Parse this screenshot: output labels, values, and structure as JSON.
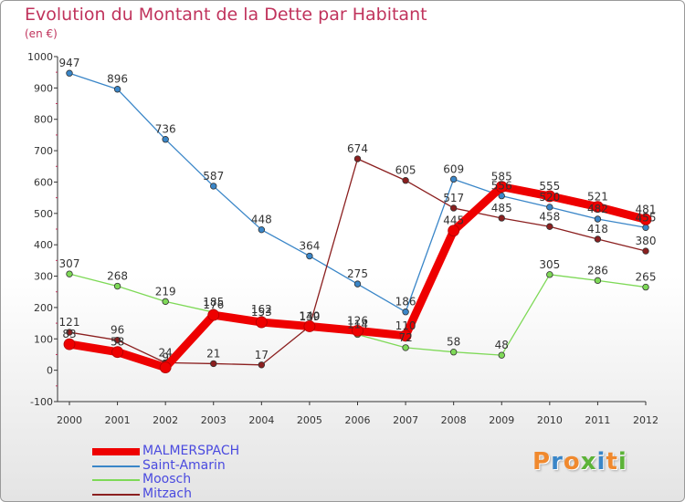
{
  "title": "Evolution du Montant de la Dette par Habitant",
  "subtitle": "(en €)",
  "logo": {
    "text": "Proxiti",
    "letter_colors": [
      "#f0892e",
      "#3a86c8",
      "#f0892e",
      "#5cb338",
      "#3a86c8",
      "#f0892e",
      "#5cb338"
    ]
  },
  "chart_data": {
    "type": "line",
    "x": [
      "2000",
      "2001",
      "2002",
      "2003",
      "2004",
      "2005",
      "2006",
      "2007",
      "2008",
      "2009",
      "2010",
      "2011",
      "2012"
    ],
    "ylim": [
      -100,
      1000
    ],
    "yticks": [
      "-100",
      "0",
      "100",
      "200",
      "300",
      "400",
      "500",
      "600",
      "700",
      "800",
      "900",
      "1000"
    ],
    "grid": false,
    "legend_position": "bottom-left",
    "series": [
      {
        "name": "MALMERSPACH",
        "color": "#ee0000",
        "emphasis": true,
        "values": [
          83,
          58,
          9,
          176,
          153,
          140,
          126,
          110,
          445,
          585,
          555,
          521,
          481
        ],
        "labels": [
          "83",
          "58",
          "9",
          "176",
          "153",
          "140",
          "126",
          "110",
          "445",
          "585",
          "555",
          "521",
          "481"
        ]
      },
      {
        "name": "Saint-Amarin",
        "color": "#3a86c8",
        "values": [
          947,
          896,
          736,
          587,
          448,
          364,
          275,
          186,
          609,
          556,
          520,
          482,
          455
        ],
        "labels": [
          "947",
          "896",
          "736",
          "587",
          "448",
          "364",
          "275",
          "186",
          "609",
          "556",
          "520",
          "482",
          "455"
        ]
      },
      {
        "name": "Moosch",
        "color": "#7ed957",
        "values": [
          307,
          268,
          219,
          185,
          162,
          139,
          114,
          72,
          58,
          48,
          305,
          286,
          265
        ],
        "labels": [
          "307",
          "268",
          "219",
          "185",
          "162",
          "139",
          "114",
          "72",
          "58",
          "48",
          "305",
          "286",
          "265"
        ]
      },
      {
        "name": "Mitzach",
        "color": "#8b1f1f",
        "values": [
          121,
          96,
          24,
          21,
          17,
          140,
          674,
          605,
          517,
          485,
          458,
          418,
          380
        ],
        "labels": [
          "121",
          "96",
          "24",
          "21",
          "17",
          "140",
          "674",
          "605",
          "517",
          "485",
          "458",
          "418",
          "380"
        ]
      }
    ]
  }
}
